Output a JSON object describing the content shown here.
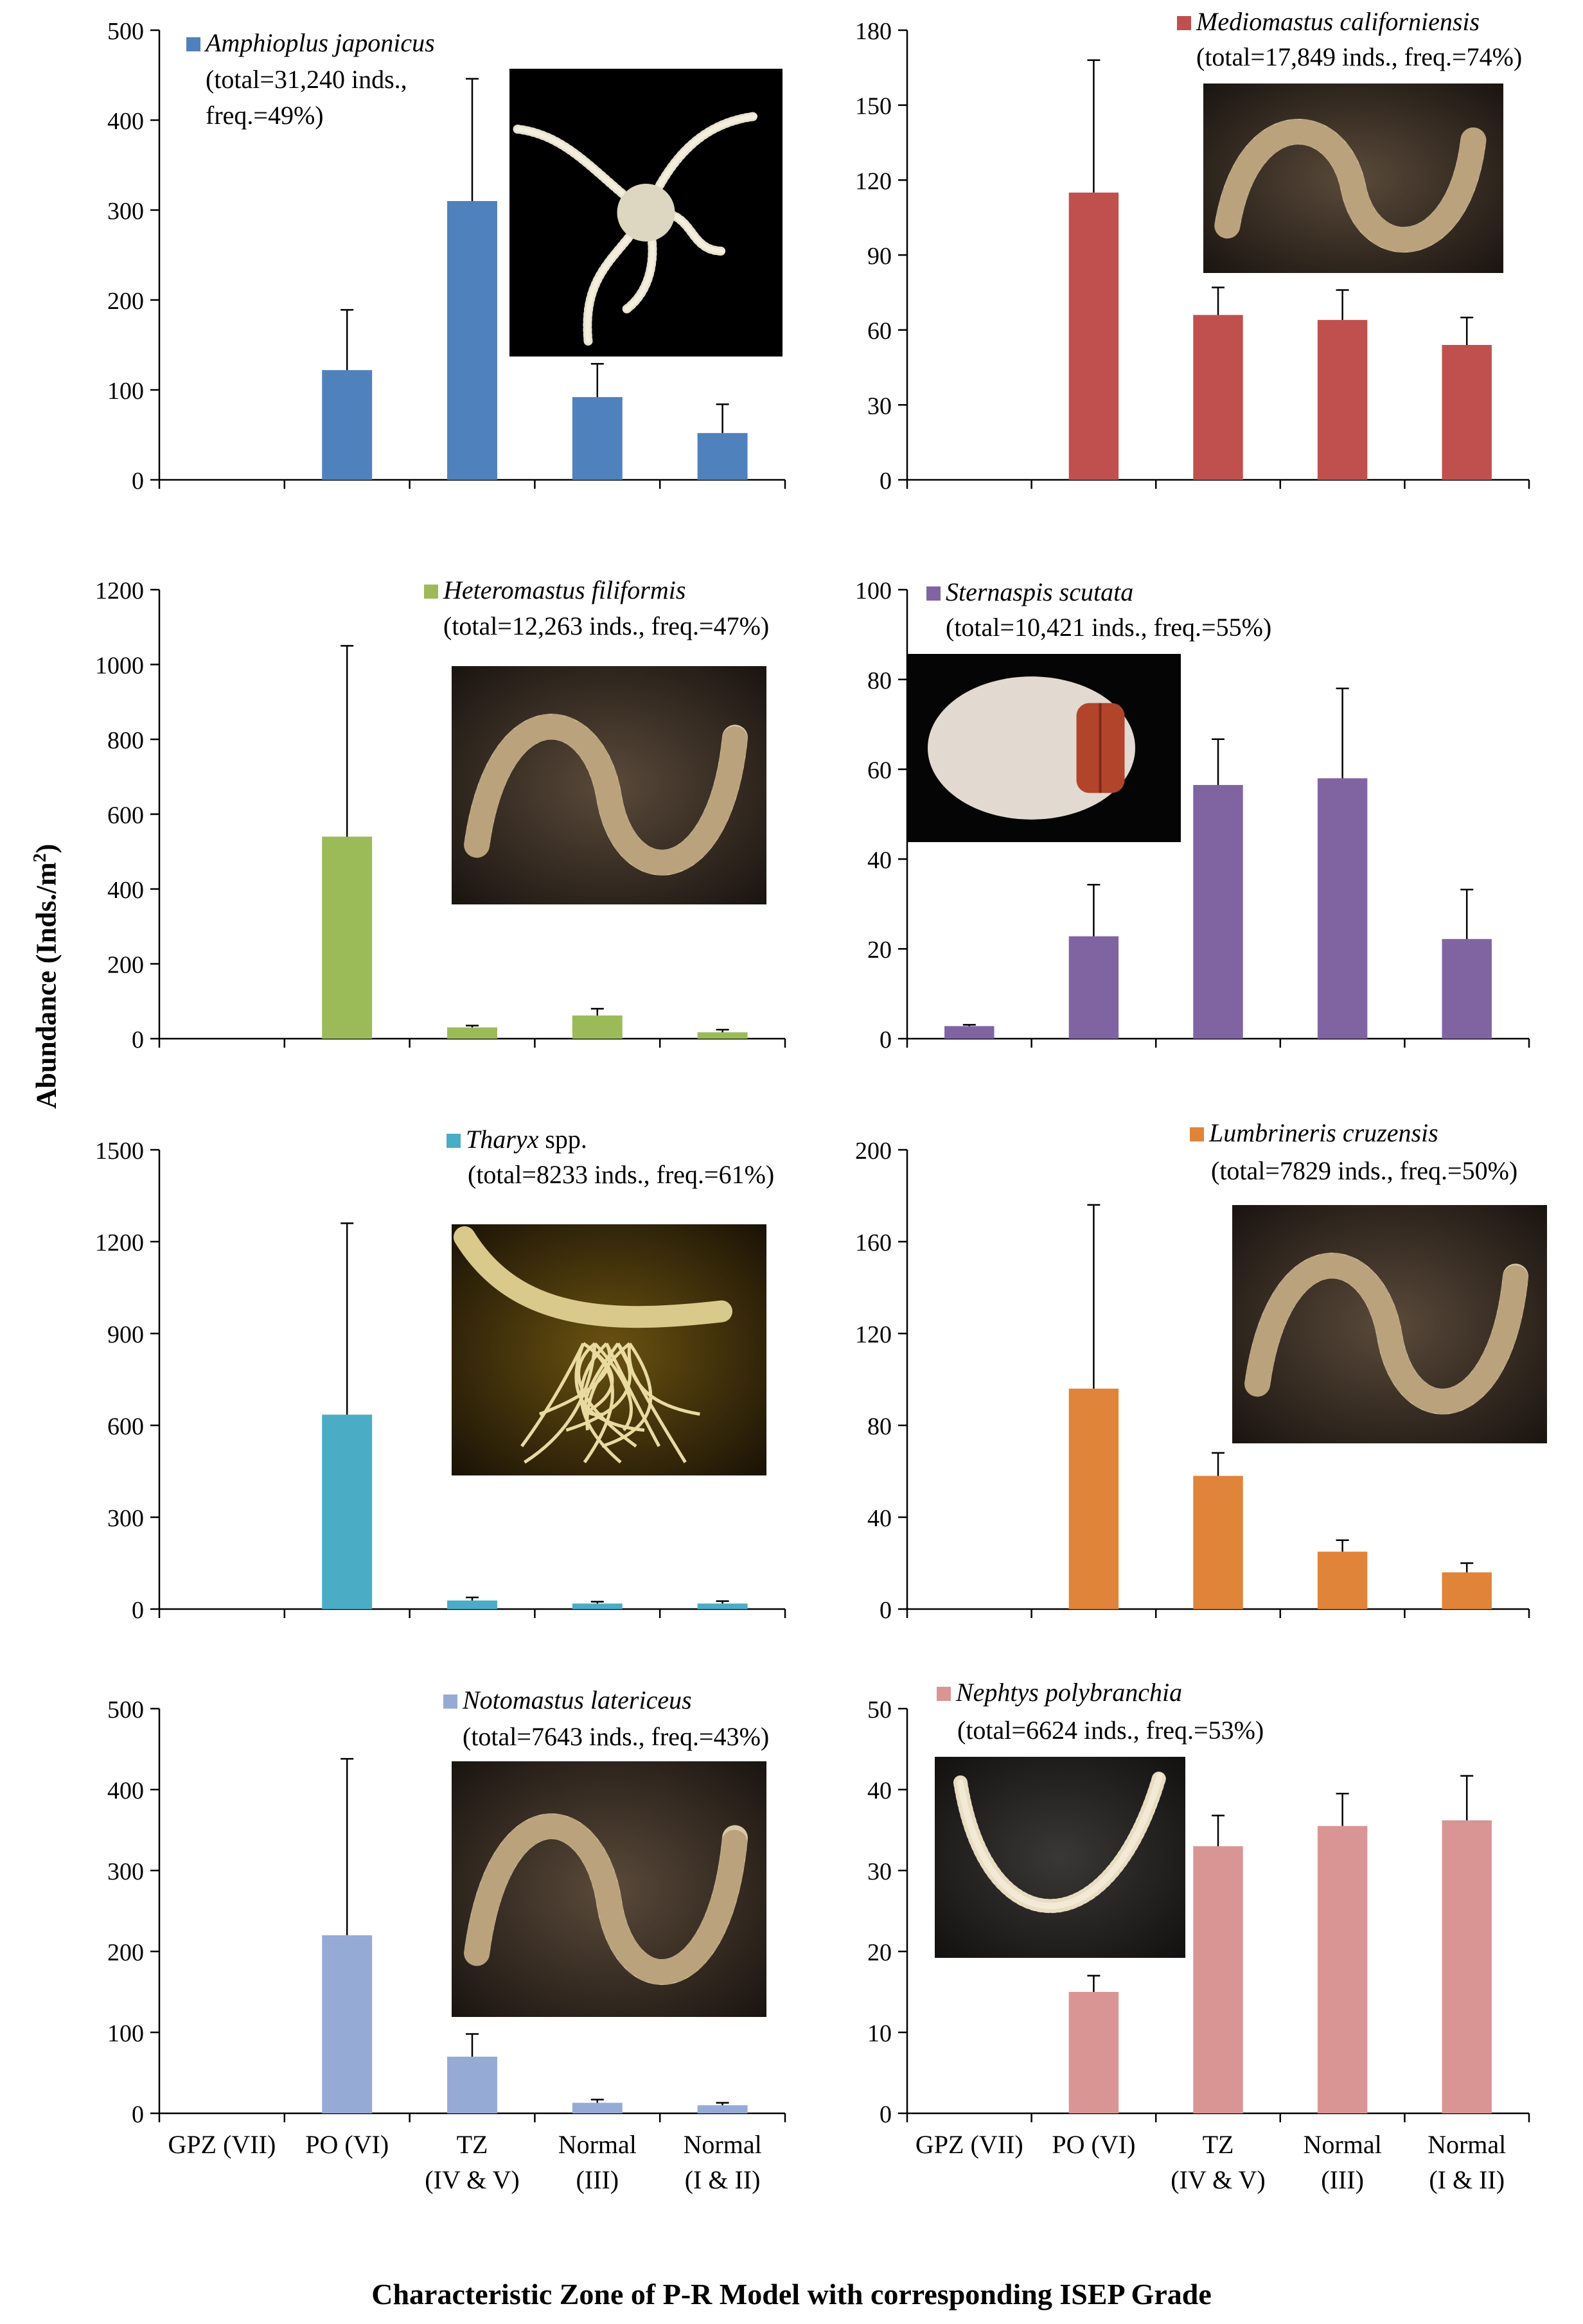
{
  "figure": {
    "ylabel_text": "Abundance  (Inds./m",
    "ylabel_sup": "2",
    "ylabel_end": ")",
    "xlabel": "Characteristic Zone of P-R Model with corresponding ISEP Grade"
  },
  "chart_data": [
    {
      "type": "bar",
      "species": "Amphioplus japonicus",
      "info_lines": [
        "(total=31,240 inds.,",
        "freq.=49%)"
      ],
      "color": "#4F81BD",
      "categories": [
        [
          "GPZ (VII)"
        ],
        [
          "PO (VI)"
        ],
        [
          "TZ",
          "(IV & V)"
        ],
        [
          "Normal",
          "(III)"
        ],
        [
          "Normal",
          "(I & II)"
        ]
      ],
      "values": [
        0,
        122,
        310,
        92,
        52
      ],
      "errors": [
        0,
        67,
        136,
        37,
        32
      ],
      "ylim": [
        0,
        500
      ],
      "yticks": [
        0,
        100,
        200,
        300,
        400,
        500
      ],
      "photo": "brittle-star-photo"
    },
    {
      "type": "bar",
      "species": "Mediomastus californiensis",
      "info_lines": [
        "(total=17,849 inds., freq.=74%)"
      ],
      "color": "#C0504D",
      "categories": [
        [
          "GPZ (VII)"
        ],
        [
          "PO (VI)"
        ],
        [
          "TZ",
          "(IV & V)"
        ],
        [
          "Normal",
          "(III)"
        ],
        [
          "Normal",
          "(I & II)"
        ]
      ],
      "values": [
        0,
        115,
        66,
        64,
        54
      ],
      "errors": [
        0,
        53,
        11,
        12,
        11
      ],
      "ylim": [
        0,
        180
      ],
      "yticks": [
        0,
        30,
        60,
        90,
        120,
        150,
        180
      ],
      "photo": "worm-photo"
    },
    {
      "type": "bar",
      "species": "Heteromastus filiformis",
      "info_lines": [
        "(total=12,263 inds., freq.=47%)"
      ],
      "color": "#9BBB59",
      "categories": [
        [
          "GPZ (VII)"
        ],
        [
          "PO (VI)"
        ],
        [
          "TZ",
          "(IV & V)"
        ],
        [
          "Normal",
          "(III)"
        ],
        [
          "Normal",
          "(I & II)"
        ]
      ],
      "values": [
        0,
        540,
        30,
        62,
        17
      ],
      "errors": [
        0,
        510,
        5,
        18,
        7
      ],
      "ylim": [
        0,
        1200
      ],
      "yticks": [
        0,
        200,
        400,
        600,
        800,
        1000,
        1200
      ],
      "photo": "worm-photo"
    },
    {
      "type": "bar",
      "species": "Sternaspis scutata",
      "info_lines": [
        "(total=10,421 inds., freq.=55%)"
      ],
      "color": "#8064A2",
      "categories": [
        [
          "GPZ (VII)"
        ],
        [
          "PO (VI)"
        ],
        [
          "TZ",
          "(IV & V)"
        ],
        [
          "Normal",
          "(III)"
        ],
        [
          "Normal",
          "(I & II)"
        ]
      ],
      "values": [
        2.8,
        22.8,
        56.5,
        58,
        22.2
      ],
      "errors": [
        0.3,
        11.5,
        10.2,
        20,
        11
      ],
      "ylim": [
        0,
        100
      ],
      "yticks": [
        0,
        20,
        40,
        60,
        80,
        100
      ],
      "photo": "sternaspis-photo"
    },
    {
      "type": "bar",
      "species": "Tharyx",
      "species_suffix": " spp.",
      "info_lines": [
        "(total=8233 inds., freq.=61%)"
      ],
      "color": "#4BACC6",
      "categories": [
        [
          "GPZ (VII)"
        ],
        [
          "PO (VI)"
        ],
        [
          "TZ",
          "(IV & V)"
        ],
        [
          "Normal",
          "(III)"
        ],
        [
          "Normal",
          "(I & II)"
        ]
      ],
      "values": [
        0,
        635,
        28,
        18,
        18
      ],
      "errors": [
        0,
        625,
        10,
        6,
        8
      ],
      "ylim": [
        0,
        1500
      ],
      "yticks": [
        0,
        300,
        600,
        900,
        1200,
        1500
      ],
      "photo": "tharyx-photo"
    },
    {
      "type": "bar",
      "species": "Lumbrineris cruzensis",
      "info_lines": [
        "(total=7829 inds., freq.=50%)"
      ],
      "color": "#E0843A",
      "categories": [
        [
          "GPZ (VII)"
        ],
        [
          "PO (VI)"
        ],
        [
          "TZ",
          "(IV & V)"
        ],
        [
          "Normal",
          "(III)"
        ],
        [
          "Normal",
          "(I & II)"
        ]
      ],
      "values": [
        0,
        96,
        58,
        25,
        16
      ],
      "errors": [
        0,
        80,
        10,
        5,
        4
      ],
      "ylim": [
        0,
        200
      ],
      "yticks": [
        0,
        40,
        80,
        120,
        160,
        200
      ],
      "photo": "worm-photo"
    },
    {
      "type": "bar",
      "species": "Notomastus latericeus",
      "info_lines": [
        "(total=7643 inds., freq.=43%)"
      ],
      "color": "#95ABD6",
      "categories": [
        [
          "GPZ (VII)"
        ],
        [
          "PO (VI)"
        ],
        [
          "TZ",
          "(IV & V)"
        ],
        [
          "Normal",
          "(III)"
        ],
        [
          "Normal",
          "(I & II)"
        ]
      ],
      "values": [
        0,
        220,
        70,
        13,
        10
      ],
      "errors": [
        0,
        218,
        28,
        4,
        3
      ],
      "ylim": [
        0,
        500
      ],
      "yticks": [
        0,
        100,
        200,
        300,
        400,
        500
      ],
      "photo": "worm-photo"
    },
    {
      "type": "bar",
      "species": "Nephtys polybranchia",
      "info_lines": [
        "(total=6624 inds., freq.=53%)"
      ],
      "color": "#D99594",
      "categories": [
        [
          "GPZ (VII)"
        ],
        [
          "PO (VI)"
        ],
        [
          "TZ",
          "(IV & V)"
        ],
        [
          "Normal",
          "(III)"
        ],
        [
          "Normal",
          "(I & II)"
        ]
      ],
      "values": [
        0,
        15,
        33,
        35.5,
        36.2
      ],
      "errors": [
        0,
        2,
        3.8,
        4,
        5.5
      ],
      "ylim": [
        0,
        50
      ],
      "yticks": [
        0,
        10,
        20,
        30,
        40,
        50
      ],
      "photo": "nephtys-photo"
    }
  ]
}
